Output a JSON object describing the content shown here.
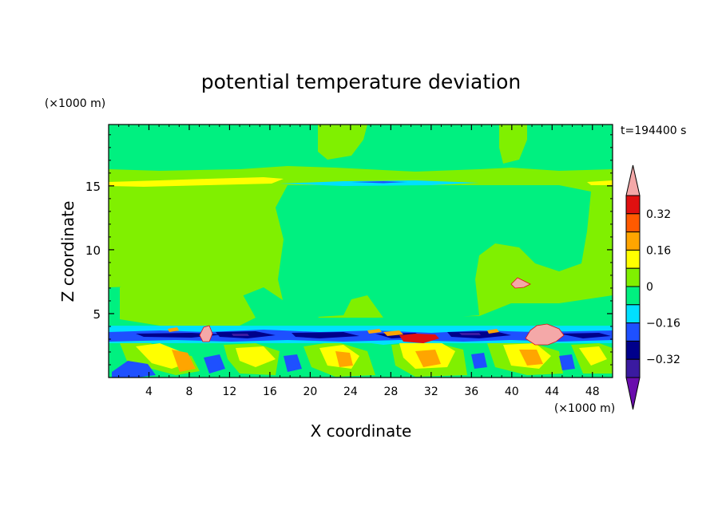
{
  "chart_data": {
    "type": "heatmap",
    "title": "potential temperature deviation",
    "time_label": "t=194400 s",
    "xlabel": "X coordinate",
    "ylabel": "Z coordinate",
    "x_unit": "(×1000 m)",
    "y_unit": "(×1000 m)",
    "xlim": [
      0,
      50
    ],
    "ylim": [
      0,
      19.8
    ],
    "x_ticks": [
      4,
      8,
      12,
      16,
      20,
      24,
      28,
      32,
      36,
      40,
      44,
      48
    ],
    "y_ticks": [
      5,
      10,
      15
    ],
    "colorbar": {
      "levels": [
        -0.4,
        -0.32,
        -0.24,
        -0.16,
        -0.08,
        0,
        0.08,
        0.16,
        0.24,
        0.32,
        0.4
      ],
      "labels": [
        "0.32",
        "0.16",
        "0",
        "−0.16",
        "−0.32"
      ],
      "label_values": [
        0.32,
        0.16,
        0,
        -0.16,
        -0.32
      ],
      "colors": [
        "#6a0dad",
        "#3a1aa0",
        "#00008b",
        "#1e50ff",
        "#00e0ff",
        "#00f080",
        "#80f000",
        "#ffff00",
        "#ffa500",
        "#ff5a00",
        "#e01010",
        "#f4a8a8"
      ],
      "extend": "both"
    },
    "regions": [
      {
        "name": "upper-background",
        "value": 0.04,
        "x": [
          0,
          50
        ],
        "z": [
          4,
          19.8
        ]
      },
      {
        "name": "neutral-column-center",
        "value": -0.04,
        "x": [
          17,
          37
        ],
        "z": [
          4,
          15
        ]
      },
      {
        "name": "neutral-top-band",
        "value": -0.04,
        "x": [
          0,
          50
        ],
        "z": [
          15.8,
          19.8
        ]
      },
      {
        "name": "positive-layer-15km",
        "value": 0.12,
        "x": [
          0,
          17
        ],
        "z": [
          15.2,
          15.8
        ]
      },
      {
        "name": "negative-layer-15km",
        "value": -0.16,
        "x": [
          23,
          34
        ],
        "z": [
          15.2,
          15.5
        ]
      },
      {
        "name": "inversion-negative-band",
        "value": -0.28,
        "x": [
          0,
          50
        ],
        "z": [
          3.3,
          3.9
        ]
      },
      {
        "name": "boundary-layer-mixed",
        "value": 0.0,
        "x": [
          0,
          50
        ],
        "z": [
          0,
          3.3
        ]
      },
      {
        "name": "warm-patch-42km",
        "value": 0.4,
        "x": [
          41,
          45
        ],
        "z": [
          2.6,
          4.2
        ]
      },
      {
        "name": "warm-patch-41km-7km",
        "value": 0.4,
        "x": [
          40.2,
          41.6
        ],
        "z": [
          7.1,
          7.6
        ]
      }
    ]
  }
}
